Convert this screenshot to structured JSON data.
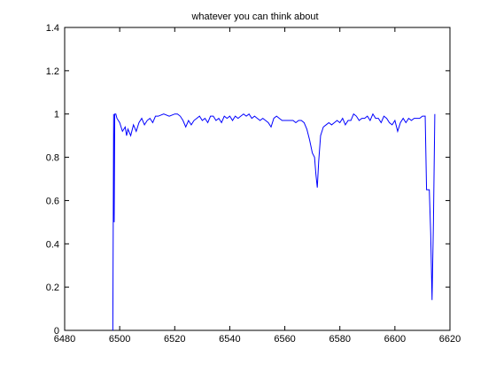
{
  "chart_data": {
    "type": "line",
    "title": "whatever you can think about",
    "xlabel": "",
    "ylabel": "",
    "xlim": [
      6480,
      6620
    ],
    "ylim": [
      0,
      1.4
    ],
    "xticks": [
      6480,
      6500,
      6520,
      6540,
      6560,
      6580,
      6600,
      6620
    ],
    "yticks": [
      0,
      0.2,
      0.4,
      0.6,
      0.8,
      1,
      1.2,
      1.4
    ],
    "xtick_labels": [
      "6480",
      "6500",
      "6520",
      "6540",
      "6560",
      "6580",
      "6600",
      "6620"
    ],
    "ytick_labels": [
      "0",
      "0.2",
      "0.4",
      "0.6",
      "0.8",
      "1",
      "1.2",
      "1.4"
    ],
    "grid": false,
    "series": [
      {
        "color": "#0000ff",
        "points": [
          [
            6497.5,
            0.0
          ],
          [
            6497.8,
            1.0
          ],
          [
            6498.0,
            0.5
          ],
          [
            6498.2,
            1.0
          ],
          [
            6498.6,
            1.0
          ],
          [
            6499.0,
            0.98
          ],
          [
            6500.0,
            0.96
          ],
          [
            6501.0,
            0.92
          ],
          [
            6502.0,
            0.94
          ],
          [
            6502.5,
            0.9
          ],
          [
            6503.0,
            0.93
          ],
          [
            6504.0,
            0.9
          ],
          [
            6505.0,
            0.95
          ],
          [
            6506.0,
            0.92
          ],
          [
            6507.0,
            0.96
          ],
          [
            6508.0,
            0.98
          ],
          [
            6509.0,
            0.95
          ],
          [
            6510.0,
            0.97
          ],
          [
            6511.0,
            0.98
          ],
          [
            6512.0,
            0.96
          ],
          [
            6513.0,
            0.99
          ],
          [
            6514.0,
            0.99
          ],
          [
            6516.0,
            1.0
          ],
          [
            6518.0,
            0.99
          ],
          [
            6520.0,
            1.0
          ],
          [
            6521.0,
            1.0
          ],
          [
            6522.0,
            0.99
          ],
          [
            6523.0,
            0.97
          ],
          [
            6524.0,
            0.94
          ],
          [
            6525.0,
            0.97
          ],
          [
            6526.0,
            0.95
          ],
          [
            6527.0,
            0.97
          ],
          [
            6528.0,
            0.98
          ],
          [
            6529.0,
            0.99
          ],
          [
            6530.0,
            0.97
          ],
          [
            6531.0,
            0.98
          ],
          [
            6532.0,
            0.96
          ],
          [
            6533.0,
            0.99
          ],
          [
            6534.0,
            0.99
          ],
          [
            6535.0,
            0.97
          ],
          [
            6536.0,
            0.98
          ],
          [
            6537.0,
            0.96
          ],
          [
            6538.0,
            0.99
          ],
          [
            6539.0,
            0.98
          ],
          [
            6540.0,
            0.99
          ],
          [
            6541.0,
            0.97
          ],
          [
            6542.0,
            0.99
          ],
          [
            6543.0,
            0.98
          ],
          [
            6544.0,
            0.99
          ],
          [
            6545.0,
            1.0
          ],
          [
            6546.0,
            0.99
          ],
          [
            6547.0,
            1.0
          ],
          [
            6548.0,
            0.98
          ],
          [
            6549.0,
            0.99
          ],
          [
            6550.0,
            0.98
          ],
          [
            6551.0,
            0.97
          ],
          [
            6552.0,
            0.98
          ],
          [
            6553.0,
            0.97
          ],
          [
            6554.0,
            0.96
          ],
          [
            6555.0,
            0.94
          ],
          [
            6556.0,
            0.98
          ],
          [
            6557.0,
            0.99
          ],
          [
            6558.0,
            0.98
          ],
          [
            6559.0,
            0.97
          ],
          [
            6560.0,
            0.97
          ],
          [
            6561.0,
            0.97
          ],
          [
            6562.0,
            0.97
          ],
          [
            6563.0,
            0.97
          ],
          [
            6564.0,
            0.96
          ],
          [
            6565.0,
            0.97
          ],
          [
            6566.0,
            0.97
          ],
          [
            6567.0,
            0.96
          ],
          [
            6568.0,
            0.93
          ],
          [
            6569.0,
            0.88
          ],
          [
            6570.0,
            0.82
          ],
          [
            6570.8,
            0.8
          ],
          [
            6571.3,
            0.72
          ],
          [
            6571.8,
            0.66
          ],
          [
            6572.3,
            0.78
          ],
          [
            6573.0,
            0.9
          ],
          [
            6574.0,
            0.94
          ],
          [
            6575.0,
            0.95
          ],
          [
            6576.0,
            0.96
          ],
          [
            6577.0,
            0.95
          ],
          [
            6578.0,
            0.96
          ],
          [
            6579.0,
            0.97
          ],
          [
            6580.0,
            0.96
          ],
          [
            6581.0,
            0.98
          ],
          [
            6582.0,
            0.95
          ],
          [
            6583.0,
            0.97
          ],
          [
            6584.0,
            0.97
          ],
          [
            6585.0,
            1.0
          ],
          [
            6586.0,
            0.99
          ],
          [
            6587.0,
            0.97
          ],
          [
            6588.0,
            0.98
          ],
          [
            6589.0,
            0.98
          ],
          [
            6590.0,
            0.99
          ],
          [
            6591.0,
            0.97
          ],
          [
            6592.0,
            1.0
          ],
          [
            6593.0,
            0.98
          ],
          [
            6594.0,
            0.98
          ],
          [
            6595.0,
            0.96
          ],
          [
            6596.0,
            0.99
          ],
          [
            6597.0,
            0.98
          ],
          [
            6598.0,
            0.96
          ],
          [
            6599.0,
            0.95
          ],
          [
            6600.0,
            0.97
          ],
          [
            6601.0,
            0.92
          ],
          [
            6602.0,
            0.96
          ],
          [
            6603.0,
            0.98
          ],
          [
            6604.0,
            0.96
          ],
          [
            6605.0,
            0.98
          ],
          [
            6606.0,
            0.97
          ],
          [
            6607.0,
            0.98
          ],
          [
            6608.0,
            0.98
          ],
          [
            6609.0,
            0.98
          ],
          [
            6610.0,
            0.99
          ],
          [
            6611.0,
            0.99
          ],
          [
            6611.5,
            0.65
          ],
          [
            6612.5,
            0.65
          ],
          [
            6613.0,
            0.45
          ],
          [
            6613.5,
            0.14
          ],
          [
            6614.0,
            0.5
          ],
          [
            6614.5,
            1.0
          ]
        ]
      }
    ]
  }
}
